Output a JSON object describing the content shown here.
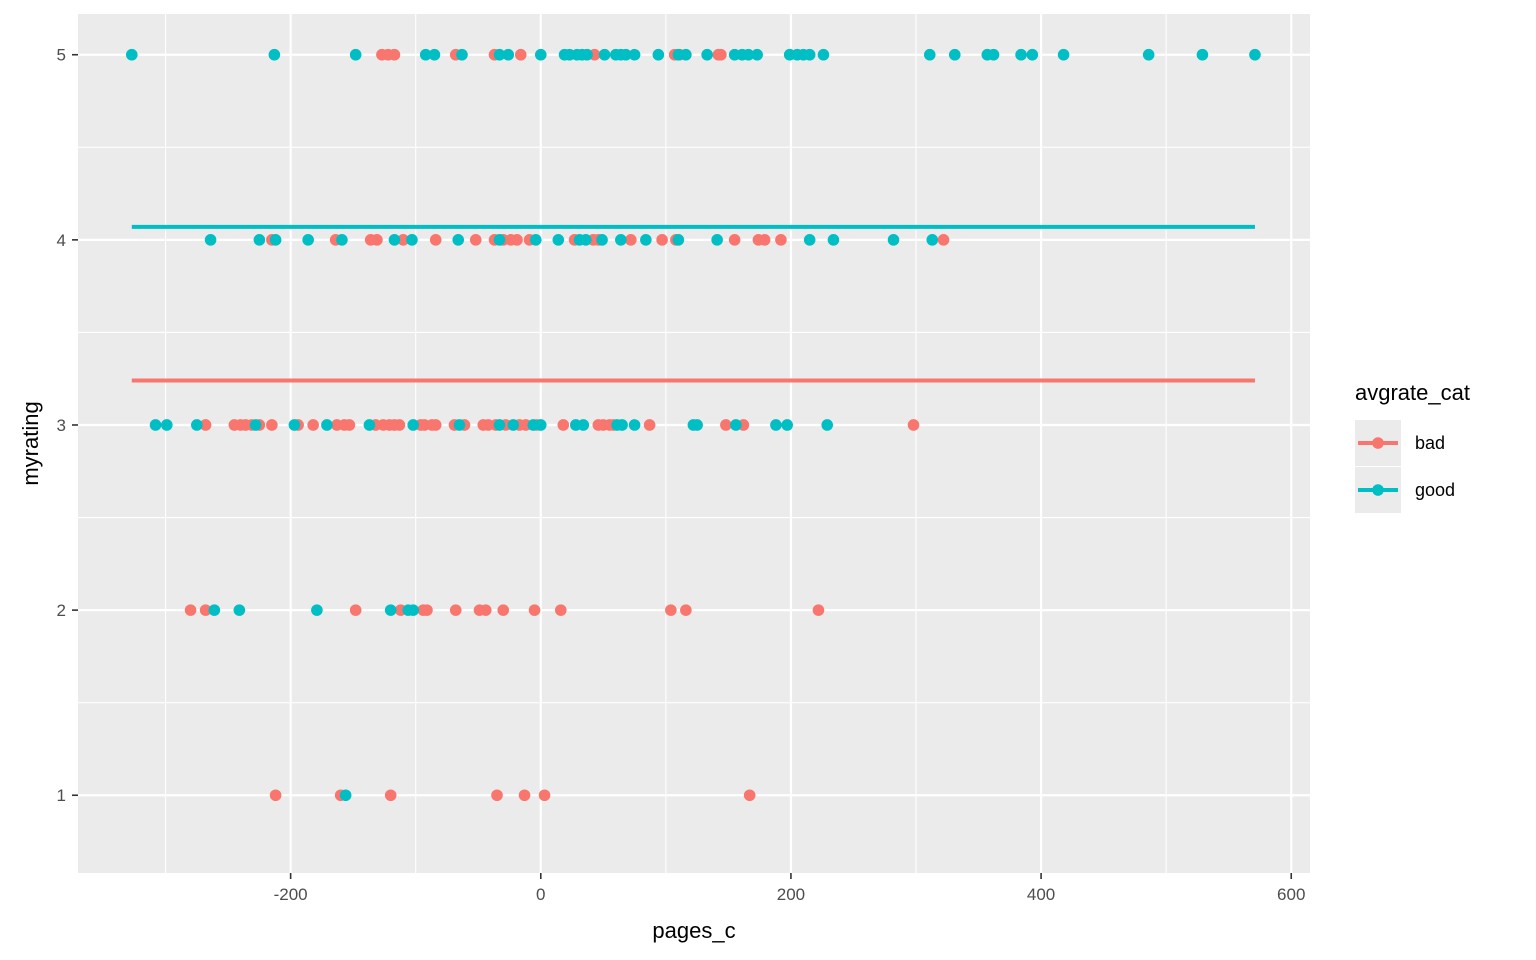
{
  "chart_data": {
    "type": "scatter",
    "xlabel": "pages_c",
    "ylabel": "myrating",
    "xlim": [
      -370,
      615
    ],
    "ylim": [
      0.58,
      5.22
    ],
    "x_ticks": [
      -200,
      0,
      200,
      400,
      600
    ],
    "x_tick_labels": [
      "-200",
      "0",
      "200",
      "400",
      "600"
    ],
    "y_ticks": [
      1,
      2,
      3,
      4,
      5
    ],
    "y_tick_labels": [
      "1",
      "2",
      "3",
      "4",
      "5"
    ],
    "grid": true,
    "legend": {
      "title": "avgrate_cat",
      "position": "right"
    },
    "series": [
      {
        "name": "bad",
        "color": "#F8766D",
        "mean_line": {
          "x": [
            -327,
            571
          ],
          "y": 3.24
        },
        "points": [
          {
            "x": -212,
            "y": 1
          },
          {
            "x": -160,
            "y": 1
          },
          {
            "x": -120,
            "y": 1
          },
          {
            "x": -35,
            "y": 1
          },
          {
            "x": -13,
            "y": 1
          },
          {
            "x": 3,
            "y": 1
          },
          {
            "x": 167,
            "y": 1
          },
          {
            "x": -280,
            "y": 2
          },
          {
            "x": -268,
            "y": 2
          },
          {
            "x": -148,
            "y": 2
          },
          {
            "x": -112,
            "y": 2
          },
          {
            "x": -94,
            "y": 2
          },
          {
            "x": -91,
            "y": 2
          },
          {
            "x": -68,
            "y": 2
          },
          {
            "x": -49,
            "y": 2
          },
          {
            "x": -44,
            "y": 2
          },
          {
            "x": -30,
            "y": 2
          },
          {
            "x": -5,
            "y": 2
          },
          {
            "x": 16,
            "y": 2
          },
          {
            "x": 104,
            "y": 2
          },
          {
            "x": 116,
            "y": 2
          },
          {
            "x": 222,
            "y": 2
          },
          {
            "x": -268,
            "y": 3
          },
          {
            "x": -245,
            "y": 3
          },
          {
            "x": -240,
            "y": 3
          },
          {
            "x": -236,
            "y": 3
          },
          {
            "x": -231,
            "y": 3
          },
          {
            "x": -225,
            "y": 3
          },
          {
            "x": -215,
            "y": 3
          },
          {
            "x": -194,
            "y": 3
          },
          {
            "x": -182,
            "y": 3
          },
          {
            "x": -163,
            "y": 3
          },
          {
            "x": -157,
            "y": 3
          },
          {
            "x": -153,
            "y": 3
          },
          {
            "x": -132,
            "y": 3
          },
          {
            "x": -126,
            "y": 3
          },
          {
            "x": -121,
            "y": 3
          },
          {
            "x": -117,
            "y": 3
          },
          {
            "x": -113,
            "y": 3
          },
          {
            "x": -96,
            "y": 3
          },
          {
            "x": -93,
            "y": 3
          },
          {
            "x": -87,
            "y": 3
          },
          {
            "x": -84,
            "y": 3
          },
          {
            "x": -69,
            "y": 3
          },
          {
            "x": -61,
            "y": 3
          },
          {
            "x": -46,
            "y": 3
          },
          {
            "x": -42,
            "y": 3
          },
          {
            "x": -36,
            "y": 3
          },
          {
            "x": -28,
            "y": 3
          },
          {
            "x": -17,
            "y": 3
          },
          {
            "x": -12,
            "y": 3
          },
          {
            "x": -3,
            "y": 3
          },
          {
            "x": 18,
            "y": 3
          },
          {
            "x": 46,
            "y": 3
          },
          {
            "x": 50,
            "y": 3
          },
          {
            "x": 55,
            "y": 3
          },
          {
            "x": 58,
            "y": 3
          },
          {
            "x": 87,
            "y": 3
          },
          {
            "x": 148,
            "y": 3
          },
          {
            "x": 162,
            "y": 3
          },
          {
            "x": 298,
            "y": 3
          },
          {
            "x": -215,
            "y": 4
          },
          {
            "x": -164,
            "y": 4
          },
          {
            "x": -136,
            "y": 4
          },
          {
            "x": -131,
            "y": 4
          },
          {
            "x": -110,
            "y": 4
          },
          {
            "x": -84,
            "y": 4
          },
          {
            "x": -52,
            "y": 4
          },
          {
            "x": -37,
            "y": 4
          },
          {
            "x": -30,
            "y": 4
          },
          {
            "x": -24,
            "y": 4
          },
          {
            "x": -19,
            "y": 4
          },
          {
            "x": -9,
            "y": 4
          },
          {
            "x": 27,
            "y": 4
          },
          {
            "x": 42,
            "y": 4
          },
          {
            "x": 46,
            "y": 4
          },
          {
            "x": 72,
            "y": 4
          },
          {
            "x": 97,
            "y": 4
          },
          {
            "x": 108,
            "y": 4
          },
          {
            "x": 155,
            "y": 4
          },
          {
            "x": 174,
            "y": 4
          },
          {
            "x": 179,
            "y": 4
          },
          {
            "x": 192,
            "y": 4
          },
          {
            "x": 322,
            "y": 4
          },
          {
            "x": -127,
            "y": 5
          },
          {
            "x": -122,
            "y": 5
          },
          {
            "x": -117,
            "y": 5
          },
          {
            "x": -68,
            "y": 5
          },
          {
            "x": -37,
            "y": 5
          },
          {
            "x": -16,
            "y": 5
          },
          {
            "x": 43,
            "y": 5
          },
          {
            "x": 107,
            "y": 5
          },
          {
            "x": 142,
            "y": 5
          },
          {
            "x": 144,
            "y": 5
          },
          {
            "x": 111,
            "y": 5
          }
        ]
      },
      {
        "name": "good",
        "color": "#00BFC4",
        "mean_line": {
          "x": [
            -327,
            571
          ],
          "y": 4.07
        },
        "points": [
          {
            "x": -156,
            "y": 1
          },
          {
            "x": -261,
            "y": 2
          },
          {
            "x": -241,
            "y": 2
          },
          {
            "x": -179,
            "y": 2
          },
          {
            "x": -120,
            "y": 2
          },
          {
            "x": -106,
            "y": 2
          },
          {
            "x": -102,
            "y": 2
          },
          {
            "x": -308,
            "y": 3
          },
          {
            "x": -299,
            "y": 3
          },
          {
            "x": -275,
            "y": 3
          },
          {
            "x": -228,
            "y": 3
          },
          {
            "x": -197,
            "y": 3
          },
          {
            "x": -171,
            "y": 3
          },
          {
            "x": -137,
            "y": 3
          },
          {
            "x": -102,
            "y": 3
          },
          {
            "x": -65,
            "y": 3
          },
          {
            "x": -33,
            "y": 3
          },
          {
            "x": -22,
            "y": 3
          },
          {
            "x": -6,
            "y": 3
          },
          {
            "x": 0,
            "y": 3
          },
          {
            "x": 28,
            "y": 3
          },
          {
            "x": 34,
            "y": 3
          },
          {
            "x": 61,
            "y": 3
          },
          {
            "x": 65,
            "y": 3
          },
          {
            "x": 75,
            "y": 3
          },
          {
            "x": 122,
            "y": 3
          },
          {
            "x": 125,
            "y": 3
          },
          {
            "x": 156,
            "y": 3
          },
          {
            "x": 188,
            "y": 3
          },
          {
            "x": 197,
            "y": 3
          },
          {
            "x": 229,
            "y": 3
          },
          {
            "x": -264,
            "y": 4
          },
          {
            "x": -225,
            "y": 4
          },
          {
            "x": -212,
            "y": 4
          },
          {
            "x": -186,
            "y": 4
          },
          {
            "x": -159,
            "y": 4
          },
          {
            "x": -117,
            "y": 4
          },
          {
            "x": -103,
            "y": 4
          },
          {
            "x": -66,
            "y": 4
          },
          {
            "x": -33,
            "y": 4
          },
          {
            "x": -4,
            "y": 4
          },
          {
            "x": 14,
            "y": 4
          },
          {
            "x": 31,
            "y": 4
          },
          {
            "x": 36,
            "y": 4
          },
          {
            "x": 49,
            "y": 4
          },
          {
            "x": 64,
            "y": 4
          },
          {
            "x": 84,
            "y": 4
          },
          {
            "x": 110,
            "y": 4
          },
          {
            "x": 141,
            "y": 4
          },
          {
            "x": 215,
            "y": 4
          },
          {
            "x": 234,
            "y": 4
          },
          {
            "x": 282,
            "y": 4
          },
          {
            "x": 313,
            "y": 4
          },
          {
            "x": -327,
            "y": 5
          },
          {
            "x": -213,
            "y": 5
          },
          {
            "x": -148,
            "y": 5
          },
          {
            "x": -92,
            "y": 5
          },
          {
            "x": -85,
            "y": 5
          },
          {
            "x": -63,
            "y": 5
          },
          {
            "x": -33,
            "y": 5
          },
          {
            "x": -26,
            "y": 5
          },
          {
            "x": 0,
            "y": 5
          },
          {
            "x": 19,
            "y": 5
          },
          {
            "x": 23,
            "y": 5
          },
          {
            "x": 29,
            "y": 5
          },
          {
            "x": 33,
            "y": 5
          },
          {
            "x": 37,
            "y": 5
          },
          {
            "x": 51,
            "y": 5
          },
          {
            "x": 60,
            "y": 5
          },
          {
            "x": 64,
            "y": 5
          },
          {
            "x": 68,
            "y": 5
          },
          {
            "x": 75,
            "y": 5
          },
          {
            "x": 94,
            "y": 5
          },
          {
            "x": 110,
            "y": 5
          },
          {
            "x": 116,
            "y": 5
          },
          {
            "x": 133,
            "y": 5
          },
          {
            "x": 155,
            "y": 5
          },
          {
            "x": 161,
            "y": 5
          },
          {
            "x": 166,
            "y": 5
          },
          {
            "x": 173,
            "y": 5
          },
          {
            "x": 199,
            "y": 5
          },
          {
            "x": 205,
            "y": 5
          },
          {
            "x": 210,
            "y": 5
          },
          {
            "x": 215,
            "y": 5
          },
          {
            "x": 226,
            "y": 5
          },
          {
            "x": 311,
            "y": 5
          },
          {
            "x": 331,
            "y": 5
          },
          {
            "x": 357,
            "y": 5
          },
          {
            "x": 362,
            "y": 5
          },
          {
            "x": 384,
            "y": 5
          },
          {
            "x": 393,
            "y": 5
          },
          {
            "x": 418,
            "y": 5
          },
          {
            "x": 486,
            "y": 5
          },
          {
            "x": 529,
            "y": 5
          },
          {
            "x": 571,
            "y": 5
          }
        ]
      }
    ]
  }
}
